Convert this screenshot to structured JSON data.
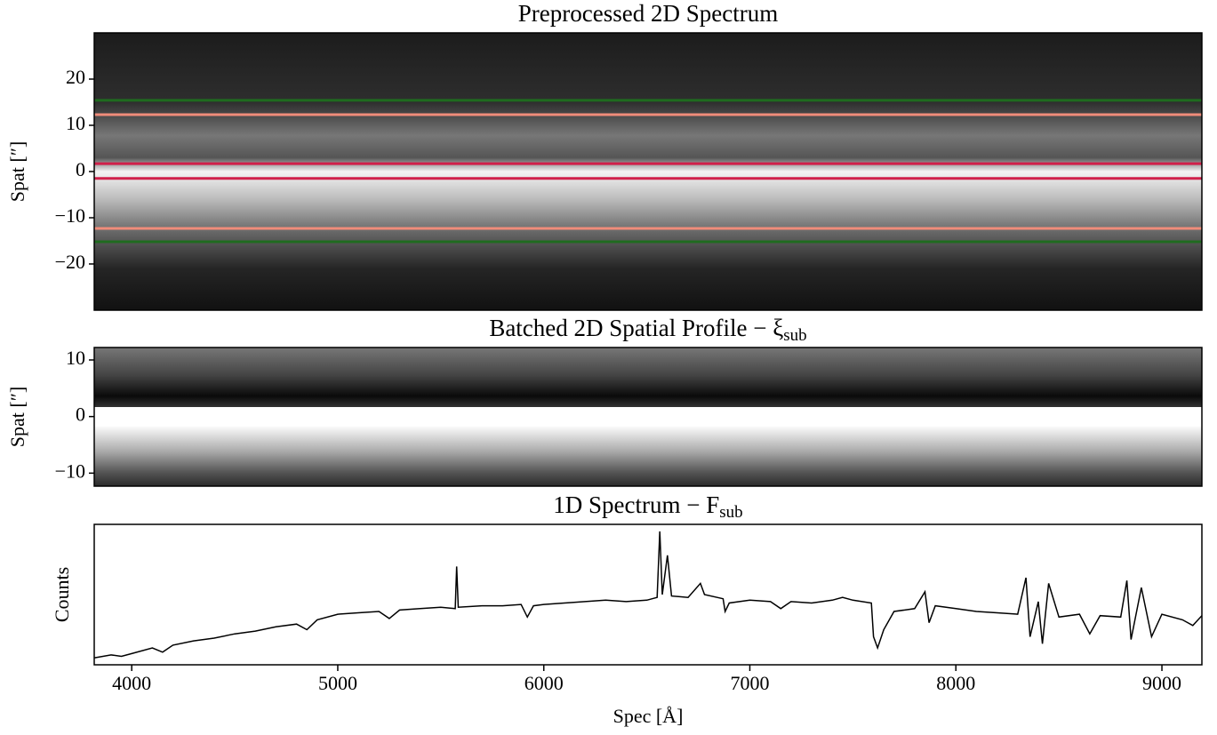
{
  "charts": [
    {
      "chart_data": {
        "type": "image",
        "title": "Preprocessed 2D Spectrum",
        "y_label": "Spat [″]",
        "xlim": [
          3818,
          9194
        ],
        "ylim": [
          -30,
          30
        ],
        "yticks": [
          {
            "value": 20,
            "label": "20"
          },
          {
            "value": 10,
            "label": "10"
          },
          0,
          {
            "value": -10,
            "label": "−10"
          },
          {
            "value": -20,
            "label": "−20"
          }
        ],
        "lines": [
          {
            "y": 15.4,
            "color": "#1f6b1f"
          },
          {
            "y": 12.3,
            "color": "#f08c7a"
          },
          {
            "y": 1.7,
            "color": "#d0204a"
          },
          {
            "y": -1.5,
            "color": "#d0204a"
          },
          {
            "y": -12.3,
            "color": "#f08c7a"
          },
          {
            "y": -15.2,
            "color": "#1f6b1f"
          }
        ]
      }
    },
    {
      "chart_data": {
        "type": "image",
        "title": "Batched 2D Spatial Profile − ξ",
        "title_sub": "sub",
        "y_label": "Spat [″]",
        "xlim": [
          3818,
          9194
        ],
        "ylim": [
          -12.3,
          12.2
        ],
        "yticks": [
          {
            "value": 10,
            "label": "10"
          },
          0,
          {
            "value": -10,
            "label": "−10"
          }
        ]
      }
    },
    {
      "chart_data": {
        "type": "line",
        "title": "1D Spectrum − F",
        "title_sub": "sub",
        "y_label": "Counts",
        "x_label": "Spec [Å]",
        "xlim": [
          3818,
          9194
        ],
        "ylim": [
          0,
          100
        ],
        "xticks": [
          4000,
          5000,
          6000,
          7000,
          8000,
          9000
        ],
        "color": "#000000",
        "x": [
          3820,
          3900,
          3950,
          4000,
          4100,
          4150,
          4200,
          4300,
          4400,
          4500,
          4600,
          4700,
          4800,
          4850,
          4900,
          5000,
          5100,
          5200,
          5250,
          5300,
          5400,
          5500,
          5570,
          5577,
          5585,
          5700,
          5800,
          5890,
          5920,
          5950,
          6000,
          6100,
          6200,
          6300,
          6400,
          6500,
          6550,
          6563,
          6575,
          6600,
          6620,
          6700,
          6760,
          6780,
          6870,
          6880,
          6900,
          7000,
          7100,
          7150,
          7200,
          7300,
          7400,
          7450,
          7500,
          7590,
          7600,
          7620,
          7650,
          7700,
          7800,
          7850,
          7870,
          7900,
          8000,
          8100,
          8200,
          8300,
          8340,
          8360,
          8400,
          8420,
          8450,
          8500,
          8600,
          8650,
          8700,
          8800,
          8830,
          8850,
          8900,
          8950,
          9000,
          9100,
          9150,
          9194
        ],
        "values": [
          5,
          7,
          6,
          8,
          12,
          9,
          14,
          17,
          19,
          22,
          24,
          27,
          29,
          25,
          32,
          36,
          37,
          38,
          33,
          39,
          40,
          41,
          40,
          70,
          41,
          42,
          42,
          43,
          34,
          42,
          43,
          44,
          45,
          46,
          45,
          46,
          48,
          95,
          50,
          78,
          49,
          48,
          58,
          50,
          47,
          38,
          44,
          46,
          45,
          40,
          45,
          44,
          46,
          48,
          46,
          44,
          20,
          12,
          25,
          38,
          40,
          52,
          30,
          42,
          40,
          38,
          37,
          36,
          62,
          20,
          45,
          15,
          58,
          34,
          36,
          22,
          35,
          34,
          60,
          18,
          55,
          20,
          36,
          32,
          28,
          35
        ]
      }
    }
  ]
}
